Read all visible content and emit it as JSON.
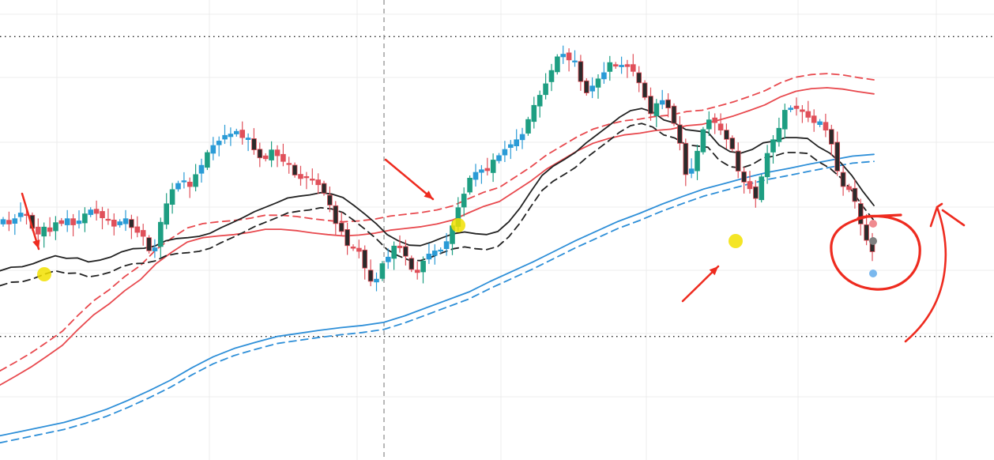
{
  "chart_data": {
    "type": "candlestick",
    "title": "",
    "xlabel": "",
    "ylabel": "",
    "ylim": [
      0,
      100
    ],
    "grid": true,
    "legend": "none",
    "reference_levels": [
      93.5,
      25.5
    ],
    "colors": {
      "up_candle_body": "#2a9bd6",
      "down_candle_body": "#e0505a",
      "bearish_candle": "#2b2b2b",
      "bullish_candle": "#1e9e82",
      "ma_black": "#222222",
      "ma_red": "#e8494e",
      "ma_blue": "#2e8fd8",
      "annotation": "#ee2b1f",
      "highlight": "#f2e000"
    },
    "series_close": [
      52.0,
      51.0,
      52.2,
      53.5,
      53.0,
      50.0,
      48.7,
      50.3,
      49.3,
      51.3,
      51.1,
      52.2,
      50.8,
      51.7,
      53.3,
      54.2,
      53.4,
      52.4,
      51.9,
      50.5,
      51.5,
      52.2,
      50.2,
      49.1,
      48.2,
      44.9,
      45.6,
      51.4,
      55.6,
      58.8,
      60.2,
      60.8,
      59.5,
      62.2,
      64.3,
      67.2,
      68.8,
      69.8,
      71.1,
      71.4,
      72.0,
      70.6,
      70.5,
      67.8,
      66.0,
      65.8,
      67.8,
      66.5,
      65.2,
      64.5,
      62.1,
      61.3,
      61.5,
      61.0,
      59.9,
      58.0,
      55.3,
      51.1,
      49.3,
      46.1,
      45.5,
      44.8,
      41.0,
      38.0,
      38.5,
      42.0,
      43.5,
      46.0,
      45.6,
      43.7,
      40.7,
      40.0,
      42.6,
      44.2,
      44.9,
      45.1,
      47.0,
      50.6,
      54.7,
      57.8,
      61.4,
      62.7,
      63.3,
      63.1,
      65.5,
      66.5,
      67.9,
      69.0,
      70.1,
      71.3,
      74.7,
      77.9,
      80.2,
      82.8,
      85.8,
      88.9,
      89.5,
      88.2,
      88.0,
      83.3,
      80.7,
      82.3,
      83.9,
      85.3,
      87.6,
      86.8,
      87.0,
      86.7,
      85.6,
      83.0,
      79.7,
      76.0,
      78.3,
      79.0,
      77.3,
      73.8,
      69.3,
      62.2,
      63.5,
      67.5,
      72.4,
      74.6,
      74.0,
      72.3,
      70.2,
      68.0,
      63.0,
      60.5,
      59.0,
      56.8,
      61.7,
      67.0,
      70.1,
      72.7,
      76.8,
      77.3,
      77.2,
      76.5,
      75.2,
      74.0,
      74.2,
      72.3,
      69.1,
      63.0,
      59.5,
      58.8,
      56.1,
      51.0,
      47.3,
      44.7
    ],
    "ma_black_solid": [
      40.4,
      41.2,
      41.3,
      42.0,
      43.0,
      43.8,
      43.2,
      43.3,
      42.4,
      42.8,
      43.5,
      44.7,
      45.4,
      45.5,
      46.0,
      47.2,
      47.7,
      47.9,
      48.2,
      48.9,
      50.2,
      51.3,
      52.5,
      53.8,
      54.8,
      55.8,
      56.9,
      57.3,
      57.6,
      58.1,
      57.8,
      57.0,
      55.2,
      53.2,
      51.1,
      48.6,
      47.2,
      46.2,
      46.1,
      46.9,
      47.9,
      48.8,
      49.2,
      48.8,
      48.6,
      49.3,
      51.5,
      54.6,
      58.4,
      62.0,
      64.1,
      65.6,
      67.2,
      69.4,
      71.3,
      73.2,
      75.2,
      76.7,
      77.2,
      76.4,
      74.6,
      73.9,
      72.4,
      72.1,
      71.8,
      68.9,
      67.4,
      67.1,
      67.9,
      69.4,
      69.8,
      70.6,
      70.6,
      70.4,
      68.5,
      67.1,
      64.9,
      62.0,
      58.4,
      55.2
    ],
    "ma_red_solid": [
      14.5,
      16.5,
      18.6,
      21.0,
      23.5,
      27.1,
      30.4,
      32.9,
      35.9,
      38.4,
      42.0,
      44.6,
      46.9,
      47.9,
      48.3,
      48.6,
      49.1,
      49.8,
      49.8,
      49.5,
      49.0,
      48.6,
      48.3,
      48.5,
      48.9,
      49.6,
      50.0,
      50.4,
      51.0,
      51.9,
      53.5,
      55.0,
      56.1,
      58.4,
      60.7,
      63.4,
      65.5,
      67.6,
      69.3,
      70.4,
      71.2,
      71.6,
      72.2,
      72.5,
      73.3,
      73.6,
      74.5,
      75.5,
      76.7,
      78.0,
      79.8,
      81.1,
      81.7,
      81.9,
      81.6,
      81.0,
      80.5
    ],
    "ma_blue_solid": [
      3.0,
      4.0,
      5.0,
      6.0,
      7.4,
      9.0,
      11.0,
      13.2,
      15.6,
      18.4,
      20.9,
      22.8,
      24.2,
      25.5,
      26.2,
      26.9,
      27.5,
      28.0,
      28.7,
      30.2,
      32.0,
      33.8,
      35.6,
      38.0,
      40.2,
      42.4,
      44.8,
      47.2,
      49.4,
      51.6,
      53.4,
      55.4,
      57.2,
      58.9,
      60.2,
      61.5,
      62.7,
      63.6,
      64.6,
      65.5,
      66.4,
      66.8
    ],
    "annotations": [
      {
        "type": "arrow",
        "direction": "down"
      },
      {
        "type": "arrow",
        "direction": "down-right"
      },
      {
        "type": "arrow",
        "direction": "up-right"
      },
      {
        "type": "freehand-circle"
      },
      {
        "type": "freehand-up-arrow"
      }
    ]
  }
}
